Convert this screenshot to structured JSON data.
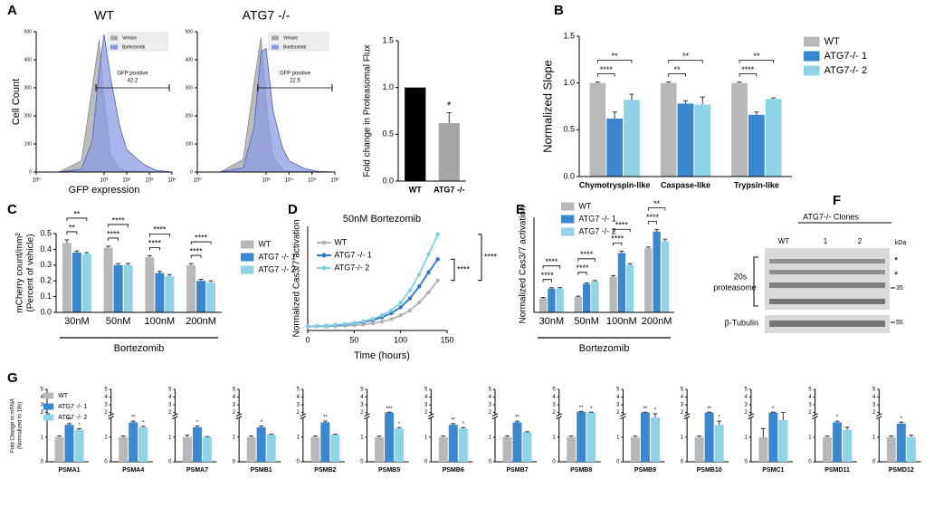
{
  "chart_data": [
    {
      "type": "area",
      "panel": "A",
      "title": "WT",
      "x_label": "GFP expression",
      "y_label": "Cell Count",
      "log_x": true,
      "x": [
        10,
        100,
        300,
        600,
        1000,
        2000,
        5000,
        10000,
        50000,
        200000,
        1000000
      ],
      "xlim": [
        1,
        1000000
      ],
      "xticks": [
        {
          "value": 1,
          "label": "10⁰"
        },
        {
          "value": 1000,
          "label": "10³"
        },
        {
          "value": 10000,
          "label": "10⁴"
        },
        {
          "value": 100000,
          "label": "10⁵"
        },
        {
          "value": 1000000,
          "label": "10⁶"
        }
      ],
      "ylim": [
        0,
        500
      ],
      "yticks": [
        0,
        100,
        200,
        300,
        400,
        500
      ],
      "series": [
        {
          "name": "Vehicle",
          "color": "#a6a6a6",
          "values": [
            0,
            40,
            300,
            470,
            260,
            60,
            12,
            4,
            1,
            0,
            0
          ]
        },
        {
          "name": "Bortezomib",
          "color": "#8c9be0",
          "values": [
            0,
            10,
            110,
            360,
            490,
            330,
            160,
            80,
            30,
            6,
            0
          ]
        }
      ],
      "gate_label": "GFP positive",
      "gate_value": 42.2
    },
    {
      "type": "area",
      "title": "ATG7 -/-",
      "log_x": true,
      "x": [
        10,
        100,
        300,
        600,
        1000,
        2000,
        5000,
        10000,
        50000,
        200000,
        1000000
      ],
      "xlim": [
        1,
        1000000
      ],
      "xticks": [
        {
          "value": 1,
          "label": "10⁰"
        },
        {
          "value": 1000,
          "label": "10³"
        },
        {
          "value": 10000,
          "label": "10⁴"
        },
        {
          "value": 100000,
          "label": "10⁵"
        },
        {
          "value": 1000000,
          "label": "10⁶"
        }
      ],
      "ylim": [
        0,
        500
      ],
      "yticks": [
        0,
        100,
        200,
        300,
        400,
        500
      ],
      "series": [
        {
          "name": "Vehicle",
          "color": "#a6a6a6",
          "values": [
            0,
            45,
            320,
            480,
            250,
            55,
            10,
            3,
            1,
            0,
            0
          ]
        },
        {
          "name": "Bortezomib",
          "color": "#8c9be0",
          "values": [
            0,
            15,
            160,
            430,
            440,
            220,
            90,
            40,
            12,
            2,
            0
          ]
        }
      ],
      "gate_label": "GFP positive",
      "gate_value": 22.5
    },
    {
      "type": "bar",
      "y_label": "Fold change in Proteasomal Flux",
      "categories": [
        "WT",
        "ATG7 -/-"
      ],
      "values": [
        1.0,
        0.62
      ],
      "errors": [
        null,
        0.11
      ],
      "colors": [
        "#000000",
        "#a6a6a6"
      ],
      "annotations": [
        null,
        "*"
      ],
      "ylim": [
        0,
        1.5
      ],
      "yticks": [
        {
          "value": 0,
          "label": "0.0"
        },
        0.5,
        {
          "value": 1,
          "label": "1.0"
        },
        1.5
      ]
    },
    {
      "type": "bar",
      "panel": "B",
      "y_label": "Normalized Slope",
      "categories": [
        "Chymotryspin-like",
        "Caspase-like",
        "Trypsin-like"
      ],
      "series": [
        {
          "name": "WT",
          "color": "#b8b8b8",
          "values": [
            1.0,
            1.0,
            1.0
          ],
          "errors": [
            0.01,
            0.01,
            0.01
          ]
        },
        {
          "name": "ATG7-/- 1",
          "color": "#3a87d0",
          "values": [
            0.62,
            0.78,
            0.66
          ],
          "errors": [
            0.07,
            0.03,
            0.03
          ]
        },
        {
          "name": "ATG7-/- 2",
          "color": "#8fd3e6",
          "values": [
            0.82,
            0.77,
            0.83
          ],
          "errors": [
            0.06,
            0.08,
            0.01
          ]
        }
      ],
      "brackets": [
        [
          "****",
          "**"
        ],
        [
          "**",
          "**"
        ],
        [
          "****",
          "**"
        ]
      ],
      "ylim": [
        0,
        1.5
      ],
      "yticks": [
        {
          "value": 0,
          "label": "0.0"
        },
        0.5,
        {
          "value": 1,
          "label": "1.0"
        },
        1.5
      ]
    },
    {
      "type": "bar",
      "panel": "C",
      "y_label": [
        "mCherry count/mm²",
        "(Percent of vehicle)"
      ],
      "x_label": "Bortezomib",
      "categories": [
        "30nM",
        "50nM",
        "100nM",
        "200nM"
      ],
      "series": [
        {
          "name": "WT",
          "color": "#b8b8b8",
          "values": [
            0.44,
            0.41,
            0.35,
            0.3
          ],
          "errors": [
            0.02,
            0.01,
            0.01,
            0.01
          ]
        },
        {
          "name": "ATG7 -/- 1",
          "color": "#3a87d0",
          "values": [
            0.38,
            0.3,
            0.25,
            0.2
          ],
          "errors": [
            0.01,
            0.01,
            0.01,
            0.01
          ]
        },
        {
          "name": "ATG7 -/- 2",
          "color": "#8fd3e6",
          "values": [
            0.37,
            0.3,
            0.23,
            0.19
          ],
          "errors": [
            0.01,
            0.01,
            0.01,
            0.01
          ]
        }
      ],
      "brackets": [
        [
          "**",
          "**"
        ],
        [
          "****",
          "****"
        ],
        [
          "****",
          "****"
        ],
        [
          "****",
          "****"
        ]
      ],
      "ylim": [
        0,
        0.5
      ],
      "yticks": [
        {
          "value": 0,
          "label": "0.0"
        },
        0.1,
        0.2,
        0.3,
        0.4,
        0.5
      ]
    },
    {
      "type": "line",
      "panel": "D",
      "title": "50nM Bortezomib",
      "x_label": "Time (hours)",
      "y_label": "Normalized Cas3/7 activation",
      "x": [
        0,
        10,
        20,
        30,
        40,
        50,
        60,
        70,
        80,
        90,
        100,
        110,
        120,
        130,
        140
      ],
      "xlim": [
        0,
        150
      ],
      "xticks": [
        0,
        50,
        100,
        150
      ],
      "ylim": [
        0,
        26
      ],
      "series": [
        {
          "name": "WT",
          "color": "#b3b3b3",
          "values": [
            1,
            1,
            1,
            1.1,
            1.2,
            1.3,
            1.5,
            1.8,
            2.2,
            2.8,
            3.8,
            5,
            7,
            9.5,
            12.5
          ]
        },
        {
          "name": "ATG7 -/- 1",
          "color": "#2f75c5",
          "values": [
            1,
            1.1,
            1.2,
            1.3,
            1.5,
            1.8,
            2.1,
            2.6,
            3.3,
            4.3,
            5.8,
            8,
            11,
            14.5,
            17.8
          ]
        },
        {
          "name": "ATG7-/- 2",
          "color": "#7fcfe3",
          "values": [
            1,
            1.1,
            1.2,
            1.4,
            1.6,
            1.9,
            2.3,
            2.9,
            3.8,
            5,
            7,
            10,
            14,
            19,
            24
          ]
        }
      ],
      "annotations": [
        "****",
        "****"
      ]
    },
    {
      "type": "bar",
      "panel": "E",
      "y_label": "Normalized Cas3/7 activation",
      "x_label": "Bortezomib",
      "categories": [
        "30nM",
        "50nM",
        "100nM",
        "200nM"
      ],
      "series": [
        {
          "name": "WT",
          "color": "#b8b8b8",
          "values": [
            6,
            6.5,
            15,
            27
          ],
          "errors": [
            0.3,
            0.3,
            0.5,
            0.5
          ]
        },
        {
          "name": "ATG7 -/- 1",
          "color": "#3a87d0",
          "values": [
            10,
            12,
            25,
            34
          ],
          "errors": [
            0.4,
            0.4,
            0.8,
            0.8
          ]
        },
        {
          "name": "ATG7 -/- 2",
          "color": "#8fd3e6",
          "values": [
            10,
            13,
            20,
            30
          ],
          "errors": [
            0.4,
            0.4,
            0.5,
            0.8
          ]
        }
      ],
      "brackets": [
        [
          "****",
          "****"
        ],
        [
          "****",
          "****"
        ],
        [
          "****",
          "****"
        ],
        [
          "****",
          "**"
        ]
      ],
      "ylim": [
        0,
        40
      ]
    },
    {
      "type": "bar",
      "panel": "G",
      "y_label": [
        "Fold Change in mRNA",
        "(Normalized to 18s)"
      ],
      "axis_break": true,
      "facets": [
        "PSMA1",
        "PSMA4",
        "PSMA7",
        "PSMB1",
        "PSMB2",
        "PSMB5",
        "PSMB6",
        "PSMB7",
        "PSMB8",
        "PSMB9",
        "PSMB10",
        "PSMC1",
        "PSMD11",
        "PSMD12"
      ],
      "series": [
        {
          "name": "WT",
          "color": "#b8b8b8",
          "values": [
            1,
            1,
            1,
            1,
            1,
            1,
            1,
            1,
            1,
            1,
            1,
            1,
            1,
            1
          ],
          "errors": [
            0.05,
            0.05,
            0.08,
            0.05,
            0.05,
            0.05,
            0.05,
            0.05,
            0.05,
            0.05,
            0.05,
            0.35,
            0.05,
            0.05
          ]
        },
        {
          "name": "ATG7 -/- 1",
          "color": "#3a87d0",
          "values": [
            1.5,
            1.6,
            1.4,
            1.4,
            1.6,
            2.0,
            1.5,
            1.6,
            2.1,
            2.0,
            2.0,
            2.0,
            1.6,
            1.55
          ],
          "errors": [
            0.05,
            0.05,
            0.05,
            0.05,
            0.05,
            0.05,
            0.05,
            0.05,
            0.05,
            0.05,
            0.05,
            0.05,
            0.05,
            0.06
          ],
          "stars": [
            "**",
            "**",
            "*",
            "*",
            "**",
            "***",
            "**",
            "**",
            "**",
            "**",
            "**",
            "*",
            "*",
            "*"
          ]
        },
        {
          "name": "ATG7 -/- 2",
          "color": "#8fd3e6",
          "values": [
            1.3,
            1.4,
            1.0,
            1.1,
            1.1,
            1.35,
            1.35,
            1.2,
            2.0,
            1.8,
            1.5,
            1.7,
            1.3,
            1.0
          ],
          "errors": [
            0.04,
            0.04,
            0.02,
            0.02,
            0.02,
            0.04,
            0.04,
            0.02,
            0.05,
            0.15,
            0.15,
            0.3,
            0.1,
            0.08
          ],
          "stars": [
            "*",
            "*",
            null,
            null,
            null,
            "*",
            "*",
            null,
            "*",
            "*",
            "*",
            null,
            null,
            null
          ]
        }
      ],
      "ylim": [
        0,
        5
      ],
      "yticks": [
        0,
        1,
        2,
        3,
        4,
        5
      ]
    }
  ],
  "blot": {
    "panel": "F",
    "title": "ATG7-/- Clones",
    "lanes": [
      "WT",
      "1",
      "2"
    ],
    "unit": "kDa",
    "bands": [
      [
        "20s",
        "proteasome"
      ],
      "β-Tubulin"
    ],
    "markers": [
      35,
      55
    ],
    "asterisks": [
      "*",
      "*"
    ]
  }
}
